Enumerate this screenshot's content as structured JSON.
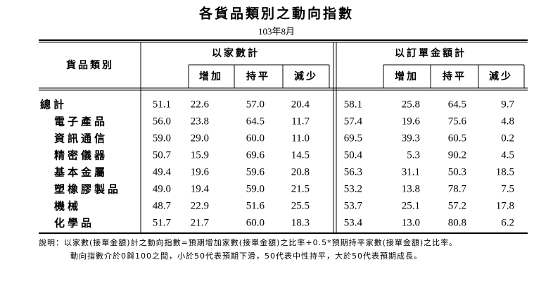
{
  "title": "各貨品類別之動向指數",
  "subtitle": "103年8月",
  "header": {
    "category": "貨品類別",
    "groups": [
      "以家數計",
      "以訂單金額計"
    ],
    "sub": [
      "增加",
      "持平",
      "減少"
    ]
  },
  "table": {
    "rows": [
      {
        "label": "總計",
        "values": [
          "51.1",
          "22.6",
          "57.0",
          "20.4",
          "58.1",
          "25.8",
          "64.5",
          "9.7"
        ]
      },
      {
        "label": "電子產品",
        "values": [
          "56.0",
          "23.8",
          "64.5",
          "11.7",
          "57.4",
          "19.6",
          "75.6",
          "4.8"
        ]
      },
      {
        "label": "資訊通信",
        "values": [
          "59.0",
          "29.0",
          "60.0",
          "11.0",
          "69.5",
          "39.3",
          "60.5",
          "0.2"
        ]
      },
      {
        "label": "精密儀器",
        "values": [
          "50.7",
          "15.9",
          "69.6",
          "14.5",
          "50.4",
          "5.3",
          "90.2",
          "4.5"
        ]
      },
      {
        "label": "基本金屬",
        "values": [
          "49.4",
          "19.6",
          "59.6",
          "20.8",
          "56.3",
          "31.1",
          "50.3",
          "18.5"
        ]
      },
      {
        "label": "塑橡膠製品",
        "values": [
          "49.0",
          "19.4",
          "59.0",
          "21.5",
          "53.2",
          "13.8",
          "78.7",
          "7.5"
        ]
      },
      {
        "label": "機械",
        "values": [
          "48.7",
          "22.9",
          "51.6",
          "25.5",
          "53.7",
          "25.1",
          "57.2",
          "17.8"
        ]
      },
      {
        "label": "化學品",
        "values": [
          "51.7",
          "21.7",
          "60.0",
          "18.3",
          "53.4",
          "13.0",
          "80.8",
          "6.2"
        ]
      }
    ]
  },
  "notes": [
    "說明：以家數(接單金額)計之動向指數=預期增加家數(接單金額)之比率+0.5*預期持平家數(接單金額)之比率。",
    "動向指數介於0與100之間，小於50代表預期下滑，50代表中性持平，大於50代表預期成長。"
  ]
}
